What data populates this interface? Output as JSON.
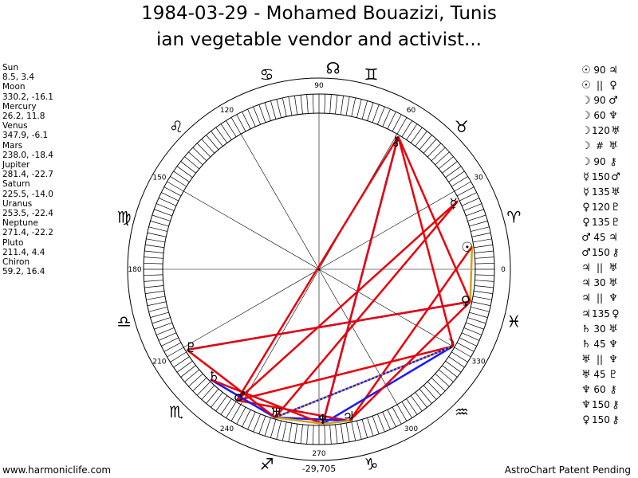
{
  "title": {
    "line1": "1984-03-29 - Mohamed Bouazizi, Tunis",
    "line2": "ian vegetable vendor and activist..."
  },
  "positions": [
    {
      "name": "Sun",
      "coords": "8.5, 3.4"
    },
    {
      "name": "Moon",
      "coords": "330.2, -16.1"
    },
    {
      "name": "Mercury",
      "coords": "26.2, 11.8"
    },
    {
      "name": "Venus",
      "coords": "347.9, -6.1"
    },
    {
      "name": "Mars",
      "coords": "238.0, -18.4"
    },
    {
      "name": "Jupiter",
      "coords": "281.4, -22.7"
    },
    {
      "name": "Saturn",
      "coords": "225.5, -14.0"
    },
    {
      "name": "Uranus",
      "coords": "253.5, -22.4"
    },
    {
      "name": "Neptune",
      "coords": "271.4, -22.2"
    },
    {
      "name": "Pluto",
      "coords": "211.4, 4.4"
    },
    {
      "name": "Chiron",
      "coords": "59.2, 16.4"
    }
  ],
  "aspects": [
    {
      "p1": "sun",
      "angle": "90",
      "p2": "jupiter"
    },
    {
      "p1": "sun",
      "angle": "||",
      "p2": "venus"
    },
    {
      "p1": "moon",
      "angle": "90",
      "p2": "mars"
    },
    {
      "p1": "moon",
      "angle": "60",
      "p2": "neptune"
    },
    {
      "p1": "moon",
      "angle": "120",
      "p2": "uranus"
    },
    {
      "p1": "moon",
      "angle": "#",
      "p2": "uranus"
    },
    {
      "p1": "moon",
      "angle": "90",
      "p2": "chiron"
    },
    {
      "p1": "mercury",
      "angle": "150",
      "p2": "mars"
    },
    {
      "p1": "mercury",
      "angle": "135",
      "p2": "uranus"
    },
    {
      "p1": "venus",
      "angle": "120",
      "p2": "pluto"
    },
    {
      "p1": "venus",
      "angle": "135",
      "p2": "pluto"
    },
    {
      "p1": "mars",
      "angle": "45",
      "p2": "jupiter"
    },
    {
      "p1": "mars",
      "angle": "150",
      "p2": "chiron"
    },
    {
      "p1": "jupiter",
      "angle": "||",
      "p2": "uranus"
    },
    {
      "p1": "jupiter",
      "angle": "30",
      "p2": "uranus"
    },
    {
      "p1": "jupiter",
      "angle": "||",
      "p2": "neptune"
    },
    {
      "p1": "jupiter",
      "angle": "135",
      "p2": "venus"
    },
    {
      "p1": "saturn",
      "angle": "30",
      "p2": "uranus"
    },
    {
      "p1": "saturn",
      "angle": "45",
      "p2": "neptune"
    },
    {
      "p1": "uranus",
      "angle": "||",
      "p2": "neptune"
    },
    {
      "p1": "uranus",
      "angle": "45",
      "p2": "pluto"
    },
    {
      "p1": "neptune",
      "angle": "60",
      "p2": "chiron"
    },
    {
      "p1": "neptune",
      "angle": "150",
      "p2": "chiron"
    },
    {
      "p1": "venus",
      "angle": "150",
      "p2": "chiron"
    }
  ],
  "glyphs": {
    "sun": "☉",
    "moon": "☽",
    "mercury": "☿",
    "venus": "♀",
    "mars": "♂",
    "jupiter": "♃",
    "saturn": "♄",
    "uranus": "♅",
    "neptune": "♆",
    "pluto": "♇",
    "chiron": "⚷",
    "node": "☊"
  },
  "zodiac_glyphs": [
    "♈",
    "♉",
    "♊",
    "♋",
    "♌",
    "♍",
    "♎",
    "♏",
    "♐",
    "♑",
    "♒",
    "♓"
  ],
  "chart": {
    "degree_labels": [
      "0",
      "30",
      "60",
      "90",
      "120",
      "150",
      "180",
      "210",
      "240",
      "270",
      "300",
      "330"
    ],
    "bottom_readout": "-29,705",
    "north_node_lon": 86
  },
  "colors": {
    "red": "#e8000a",
    "blue": "#1a1aff",
    "gold": "#d4a020"
  },
  "footer": {
    "left": "www.harmoniclife.com",
    "right": "AstroChart Patent Pending"
  }
}
